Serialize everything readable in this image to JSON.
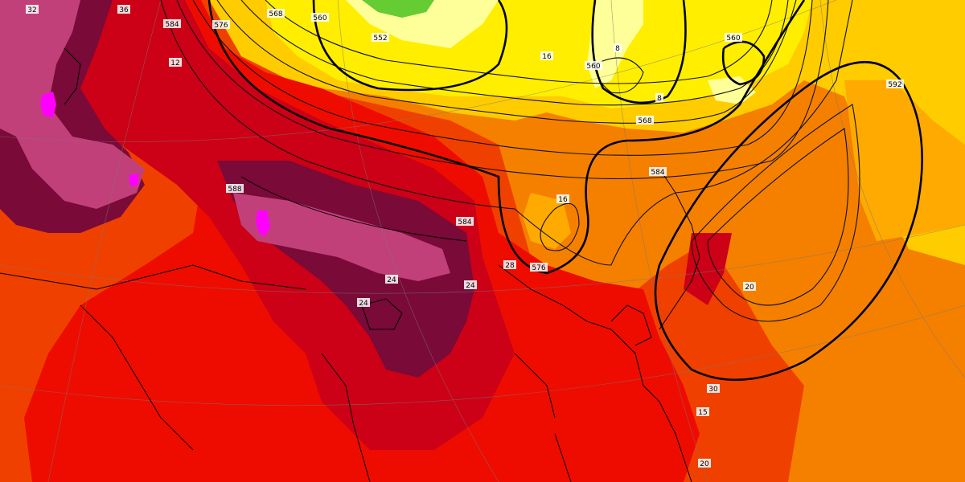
{
  "map": {
    "colors": {
      "pale_yellow": "#ffff99",
      "yellow": "#ffee00",
      "yellow_orange": "#ffcc00",
      "light_orange": "#ffaa00",
      "orange": "#f58000",
      "red_orange": "#f04000",
      "red": "#ee0c00",
      "dark_red": "#cc0016",
      "maroon": "#7a0a38",
      "purple_red": "#c2407a",
      "magenta": "#ff00ff",
      "green": "#66cc33"
    },
    "height_labels": [
      {
        "id": "h552",
        "text": "552"
      },
      {
        "id": "h560a",
        "text": "560"
      },
      {
        "id": "h560b",
        "text": "560"
      },
      {
        "id": "h560c",
        "text": "560"
      },
      {
        "id": "h568a",
        "text": "568"
      },
      {
        "id": "h568b",
        "text": "568"
      },
      {
        "id": "h576a",
        "text": "576"
      },
      {
        "id": "h576b",
        "text": "576"
      },
      {
        "id": "h584a",
        "text": "584"
      },
      {
        "id": "h584b",
        "text": "584"
      },
      {
        "id": "h584c",
        "text": "584"
      },
      {
        "id": "h592",
        "text": "592"
      },
      {
        "id": "h588",
        "text": "588"
      }
    ],
    "temp_labels": [
      {
        "id": "t32",
        "text": "32"
      },
      {
        "id": "t36",
        "text": "36"
      },
      {
        "id": "t16a",
        "text": "16"
      },
      {
        "id": "t16b",
        "text": "16"
      },
      {
        "id": "t8a",
        "text": "8"
      },
      {
        "id": "t8b",
        "text": "8"
      },
      {
        "id": "t20a",
        "text": "20"
      },
      {
        "id": "t20b",
        "text": "20"
      },
      {
        "id": "t24a",
        "text": "24"
      },
      {
        "id": "t24b",
        "text": "24"
      },
      {
        "id": "t24c",
        "text": "24"
      },
      {
        "id": "t28",
        "text": "28"
      },
      {
        "id": "t12",
        "text": "12"
      },
      {
        "id": "t15",
        "text": "15"
      },
      {
        "id": "t30",
        "text": "30"
      }
    ]
  }
}
